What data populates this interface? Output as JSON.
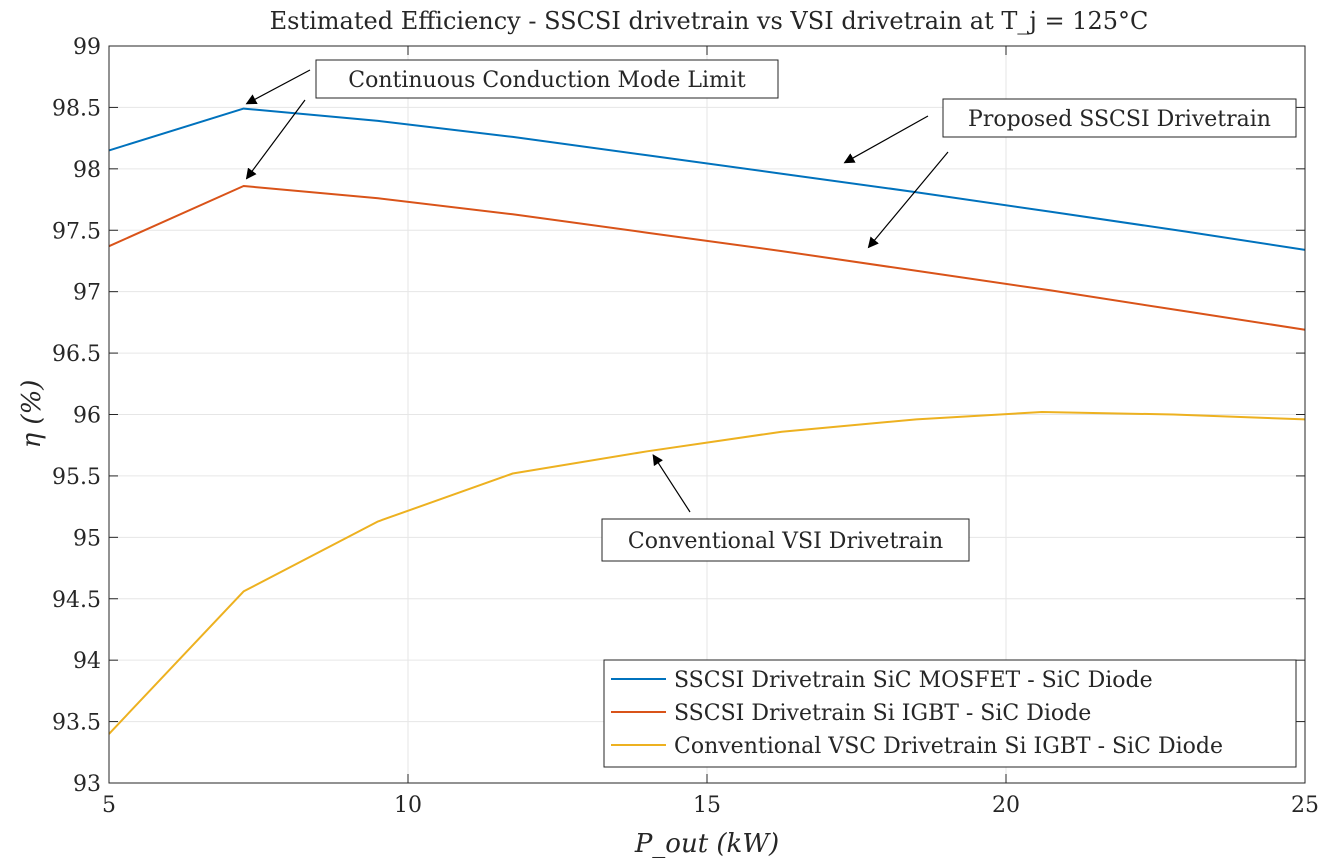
{
  "chart_data": {
    "type": "line",
    "title": "Estimated Efficiency - SSCSI drivetrain vs VSI drivetrain at T_j = 125°C",
    "xlabel": "P_out (kW)",
    "ylabel": "η (%)",
    "xlim": [
      5,
      25
    ],
    "ylim": [
      93,
      99
    ],
    "xticks": [
      5,
      10,
      15,
      20,
      25
    ],
    "yticks": [
      93,
      93.5,
      94,
      94.5,
      95,
      95.5,
      96,
      96.5,
      97,
      97.5,
      98,
      98.5,
      99
    ],
    "grid": true,
    "legend_position": "bottom-right",
    "series": [
      {
        "name": "SSCSI Drivetrain SiC MOSFET - SiC Diode",
        "color": "#0072BD",
        "x": [
          5,
          7.25,
          9.5,
          11.75,
          14,
          16.25,
          18.5,
          20.75,
          23,
          25
        ],
        "y": [
          98.15,
          98.49,
          98.39,
          98.26,
          98.11,
          97.96,
          97.81,
          97.65,
          97.49,
          97.34
        ]
      },
      {
        "name": "SSCSI Drivetrain Si IGBT - SiC Diode",
        "color": "#D95319",
        "x": [
          5,
          7.25,
          9.5,
          11.75,
          14,
          16.25,
          18.5,
          20.75,
          23,
          25
        ],
        "y": [
          97.37,
          97.86,
          97.76,
          97.63,
          97.48,
          97.33,
          97.17,
          97.01,
          96.84,
          96.69
        ]
      },
      {
        "name": "Conventional VSC Drivetrain Si IGBT - SiC Diode",
        "color": "#EDB120",
        "x": [
          5,
          7.25,
          9.5,
          11.75,
          14,
          16.25,
          18.5,
          20.6,
          22.8,
          25
        ],
        "y": [
          93.4,
          94.56,
          95.13,
          95.52,
          95.7,
          95.86,
          95.96,
          96.02,
          96.0,
          95.96
        ]
      }
    ],
    "annotations": [
      {
        "text": "Continuous Conduction Mode Limit",
        "arrow_targets": [
          [
            7.3,
            98.53
          ],
          [
            7.3,
            97.92
          ]
        ]
      },
      {
        "text": "Proposed SSCSI Drivetrain",
        "arrow_targets": [
          [
            17.3,
            98.05
          ],
          [
            17.7,
            97.36
          ]
        ]
      },
      {
        "text": "Conventional VSI Drivetrain",
        "arrow_targets": [
          [
            14.1,
            95.67
          ]
        ]
      }
    ]
  }
}
